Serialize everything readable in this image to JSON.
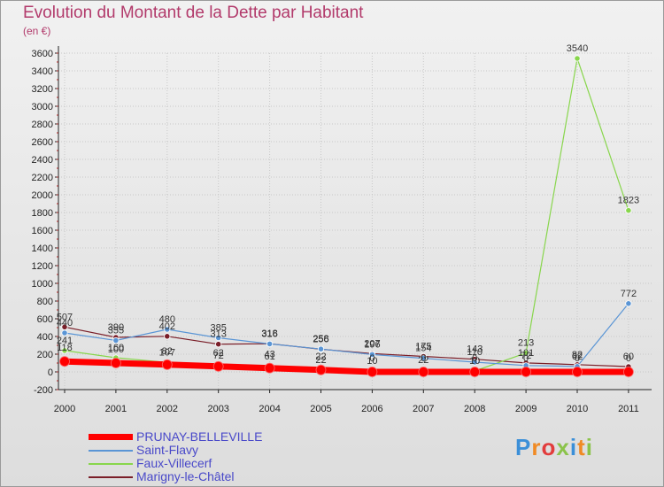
{
  "title": "Evolution du Montant de la Dette par Habitant",
  "unit_label": "(en €)",
  "logo_text": "Proxiti",
  "chart_data": {
    "type": "line",
    "title": "Evolution du Montant de la Dette par Habitant",
    "ylabel": "(en €)",
    "xlabel": "",
    "ylim": [
      -200,
      3600
    ],
    "y_ticks": [
      -200,
      0,
      200,
      400,
      600,
      800,
      1000,
      1200,
      1400,
      1600,
      1800,
      2000,
      2200,
      2400,
      2600,
      2800,
      3000,
      3200,
      3400,
      3600
    ],
    "categories": [
      "2000",
      "2001",
      "2002",
      "2003",
      "2004",
      "2005",
      "2006",
      "2007",
      "2008",
      "2009",
      "2010",
      "2011"
    ],
    "grid": true,
    "legend_position": "bottom-left",
    "series": [
      {
        "name": "PRUNAY-BELLEVILLE",
        "color": "#ff0000",
        "values": [
          118,
          100,
          82,
          62,
          43,
          22,
          0,
          0,
          0,
          0,
          0,
          0
        ]
      },
      {
        "name": "Saint-Flavy",
        "color": "#5a95d5",
        "values": [
          440,
          355,
          480,
          385,
          316,
          258,
          196,
          154,
          110,
          72,
          62,
          772
        ]
      },
      {
        "name": "Faux-Villecerf",
        "color": "#88d64c",
        "values": [
          241,
          160,
          107,
          72,
          61,
          22,
          10,
          22,
          10,
          213,
          3540,
          1823
        ]
      },
      {
        "name": "Marigny-le-Châtel",
        "color": "#7a1e28",
        "values": [
          507,
          390,
          402,
          313,
          318,
          256,
          207,
          175,
          143,
          101,
          82,
          60
        ]
      }
    ],
    "data_labels": [
      {
        "series": 1,
        "labels": [
          "440",
          "355",
          "480",
          "385",
          "316",
          "258",
          "196",
          "154",
          "110",
          "72",
          "62",
          "772"
        ]
      },
      {
        "series": 2,
        "labels": [
          "241",
          "160",
          "107",
          "72",
          "61",
          "22",
          "10",
          "22",
          "10",
          "213",
          "3540",
          "1823"
        ]
      },
      {
        "series": 3,
        "labels": [
          "507",
          "390",
          "402",
          "313",
          "318",
          "256",
          "207",
          "175",
          "143",
          "101",
          "82",
          "60"
        ]
      },
      {
        "series": 0,
        "labels": [
          "118",
          "100",
          "82",
          "62",
          "43",
          "22",
          "0",
          "0",
          "0",
          "0",
          "0",
          "0"
        ]
      }
    ]
  }
}
